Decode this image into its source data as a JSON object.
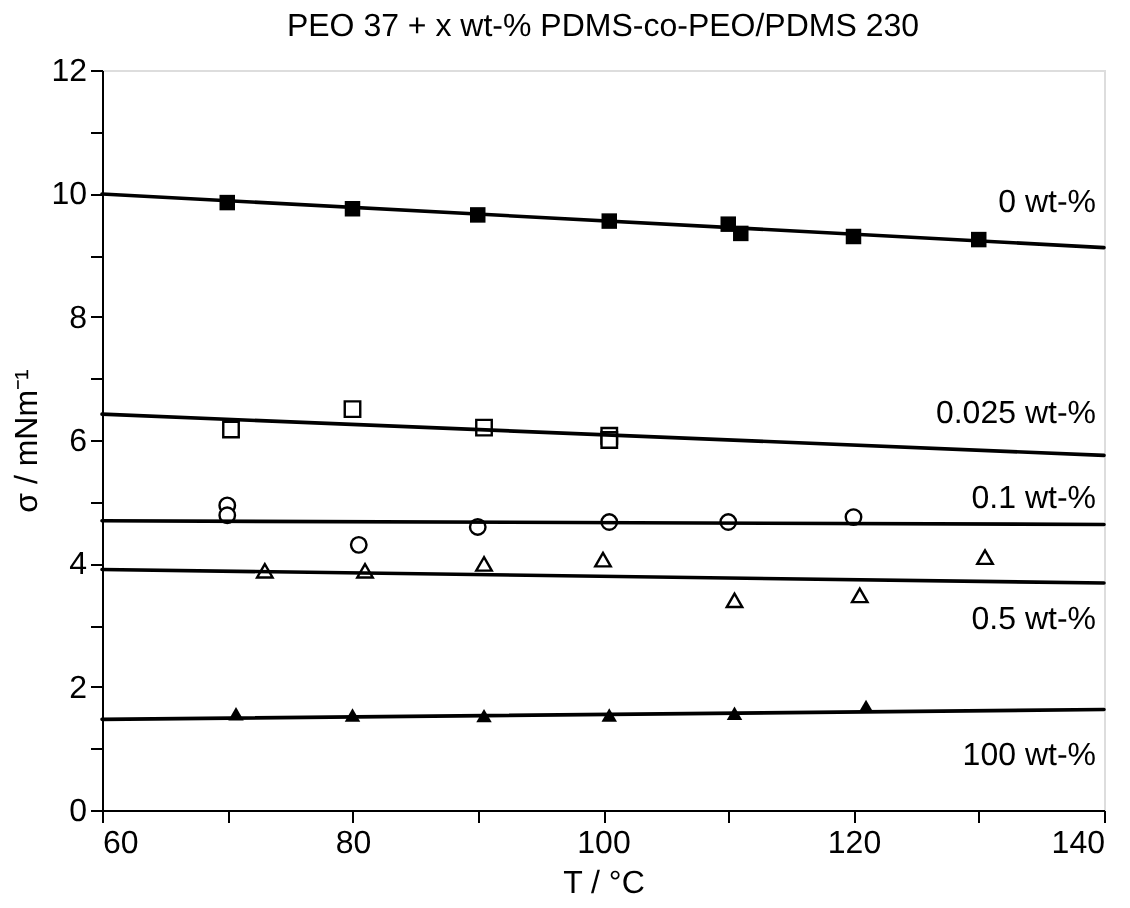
{
  "chart_data": {
    "type": "scatter",
    "title": "PEO 37 + x wt-% PDMS-co-PEO/PDMS 230",
    "xlabel": "T / °C",
    "ylabel": "σ / mNm⁻¹",
    "xlim": [
      60,
      140
    ],
    "ylim": [
      0,
      12
    ],
    "xticks": [
      60,
      {
        "value": 70,
        "label": null
      },
      80,
      {
        "value": 90,
        "label": null
      },
      100,
      {
        "value": 110,
        "label": null
      },
      120,
      {
        "value": 130,
        "label": null
      },
      140
    ],
    "yticks": [
      0,
      {
        "value": 1,
        "label": null
      },
      2,
      {
        "value": 3,
        "label": null
      },
      4,
      {
        "value": 5,
        "label": null
      },
      6,
      {
        "value": 7,
        "label": null
      },
      8,
      {
        "value": 9,
        "label": null
      },
      10,
      {
        "value": 11,
        "label": null
      },
      12
    ],
    "grid": false,
    "series": [
      {
        "marker": "square",
        "color": "#000000",
        "x": [
          70,
          80,
          90,
          100.5,
          110,
          111,
          120,
          130
        ],
        "values": [
          9.85,
          9.75,
          9.65,
          9.55,
          9.5,
          9.35,
          9.3,
          9.25
        ]
      },
      {
        "marker": "square-open",
        "color": "#000000",
        "x": [
          70.3,
          80,
          90.5,
          100.5,
          100.5
        ],
        "values": [
          6.17,
          6.5,
          6.2,
          6.07,
          6.0
        ]
      },
      {
        "marker": "circle-open",
        "color": "#000000",
        "x": [
          70,
          70,
          80.5,
          90,
          100.5,
          110,
          120
        ],
        "values": [
          4.94,
          4.78,
          4.3,
          4.59,
          4.67,
          4.67,
          4.75
        ]
      },
      {
        "marker": "triangle-open",
        "color": "#000000",
        "x": [
          73,
          81,
          90.5,
          100,
          110.5,
          120.5,
          130.5
        ],
        "values": [
          3.88,
          3.88,
          3.99,
          4.06,
          3.4,
          3.48,
          4.1
        ]
      },
      {
        "marker": "triangle",
        "color": "#000000",
        "x": [
          70.7,
          80,
          90.5,
          100.5,
          110.5,
          121
        ],
        "values": [
          1.56,
          1.54,
          1.53,
          1.54,
          1.57,
          1.68
        ]
      },
      {
        "type": "line",
        "line_style": "solid",
        "color": "#000000",
        "x": [
          60,
          140
        ],
        "values": [
          9.99,
          9.12
        ]
      },
      {
        "type": "line",
        "line_style": "solid",
        "color": "#000000",
        "x": [
          60,
          140
        ],
        "values": [
          6.42,
          5.75
        ]
      },
      {
        "type": "line",
        "line_style": "solid",
        "color": "#000000",
        "x": [
          60,
          140
        ],
        "values": [
          4.69,
          4.63
        ]
      },
      {
        "type": "line",
        "line_style": "solid",
        "color": "#000000",
        "x": [
          60,
          140
        ],
        "values": [
          3.9,
          3.68
        ]
      },
      {
        "type": "line",
        "line_style": "solid",
        "color": "#000000",
        "x": [
          60,
          140
        ],
        "values": [
          1.47,
          1.63
        ]
      }
    ],
    "annotations": [
      "0 wt-%",
      "0.025 wt-%",
      "0.1 wt-%",
      "0.5 wt-%",
      "100 wt-%"
    ]
  }
}
